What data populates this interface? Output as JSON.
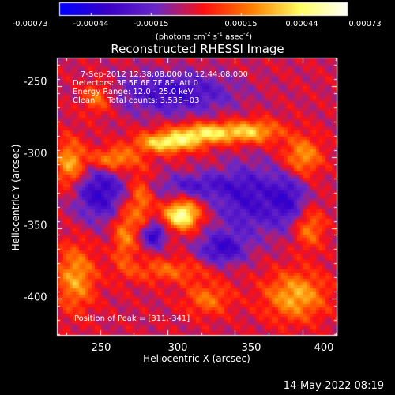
{
  "colorbar": {
    "ticks": [
      "-0.00073",
      "-0.00044",
      "-0.00015",
      "0.00015",
      "0.00044",
      "0.00073"
    ],
    "unit_line1": "(photons cm",
    "unit_sup1": "-2",
    "unit_line2": " s",
    "unit_sup2": "-1",
    "unit_line3": " asec",
    "unit_sup3": "-2",
    "unit_end": ")",
    "colors": [
      "#0000ff",
      "#3a00c8",
      "#6a28c8",
      "#ff1010",
      "#ff8000",
      "#ffff60",
      "#ffffff"
    ]
  },
  "chart_data": {
    "type": "heatmap",
    "title": "Reconstructed RHESSI Image",
    "xlabel": "Heliocentric X (arcsec)",
    "ylabel": "Heliocentric Y (arcsec)",
    "xlim": [
      218,
      426
    ],
    "ylim": [
      -426,
      -230
    ],
    "xticks": [
      "250",
      "300",
      "350",
      "400"
    ],
    "xtick_values": [
      250,
      300,
      350,
      400
    ],
    "yticks": [
      "-250",
      "-300",
      "-350",
      "-400"
    ],
    "ytick_values": [
      -250,
      -300,
      -350,
      -400
    ],
    "value_range": [
      -0.00073,
      0.00073
    ],
    "info": {
      "time": "7-Sep-2012 12:38:08.000 to 12:44:08.000",
      "detectors": "Detectors: 3F 5F 6F 7F 8F, Att 0",
      "energy": "Energy Range: 12.0 - 25.0 keV",
      "clean": "Clean     Total counts: 3.53E+03"
    },
    "peak_label": "Position of Peak = [311,-341]",
    "peak": [
      311,
      -341
    ],
    "sources": [
      {
        "x": 311,
        "y": -341,
        "amp": 1.0,
        "sx": 9,
        "sy": 7
      },
      {
        "x": 300,
        "y": -290,
        "amp": 0.8,
        "sx": 16,
        "sy": 5
      },
      {
        "x": 330,
        "y": -283,
        "amp": 0.75,
        "sx": 18,
        "sy": 5
      },
      {
        "x": 260,
        "y": -302,
        "amp": 0.6,
        "sx": 12,
        "sy": 6
      },
      {
        "x": 365,
        "y": -282,
        "amp": 0.55,
        "sx": 14,
        "sy": 6
      },
      {
        "x": 280,
        "y": -330,
        "amp": 0.45,
        "sx": 6,
        "sy": 14
      },
      {
        "x": 268,
        "y": -355,
        "amp": 0.45,
        "sx": 6,
        "sy": 16
      },
      {
        "x": 228,
        "y": -305,
        "amp": 0.6,
        "sx": 8,
        "sy": 12
      },
      {
        "x": 232,
        "y": -385,
        "amp": 0.55,
        "sx": 10,
        "sy": 16
      },
      {
        "x": 400,
        "y": -300,
        "amp": 0.55,
        "sx": 10,
        "sy": 10
      },
      {
        "x": 395,
        "y": -398,
        "amp": 0.6,
        "sx": 16,
        "sy": 12
      },
      {
        "x": 405,
        "y": -350,
        "amp": 0.45,
        "sx": 8,
        "sy": 10
      },
      {
        "x": 248,
        "y": -258,
        "amp": 0.45,
        "sx": 8,
        "sy": 8
      },
      {
        "x": 300,
        "y": -380,
        "amp": 0.35,
        "sx": 22,
        "sy": 6
      },
      {
        "x": 330,
        "y": -400,
        "amp": 0.4,
        "sx": 12,
        "sy": 8
      }
    ],
    "negative_regions": [
      {
        "x": 305,
        "y": -255,
        "amp": -0.55,
        "sx": 30,
        "sy": 10
      },
      {
        "x": 250,
        "y": -325,
        "amp": -0.6,
        "sx": 14,
        "sy": 14
      },
      {
        "x": 290,
        "y": -355,
        "amp": -0.65,
        "sx": 6,
        "sy": 6
      },
      {
        "x": 360,
        "y": -330,
        "amp": -0.5,
        "sx": 18,
        "sy": 18
      },
      {
        "x": 390,
        "y": -330,
        "amp": -0.45,
        "sx": 10,
        "sy": 14
      },
      {
        "x": 340,
        "y": -365,
        "amp": -0.55,
        "sx": 12,
        "sy": 8
      },
      {
        "x": 320,
        "y": -320,
        "amp": -0.4,
        "sx": 20,
        "sy": 6
      }
    ]
  },
  "timestamp": "14-May-2022 08:19"
}
